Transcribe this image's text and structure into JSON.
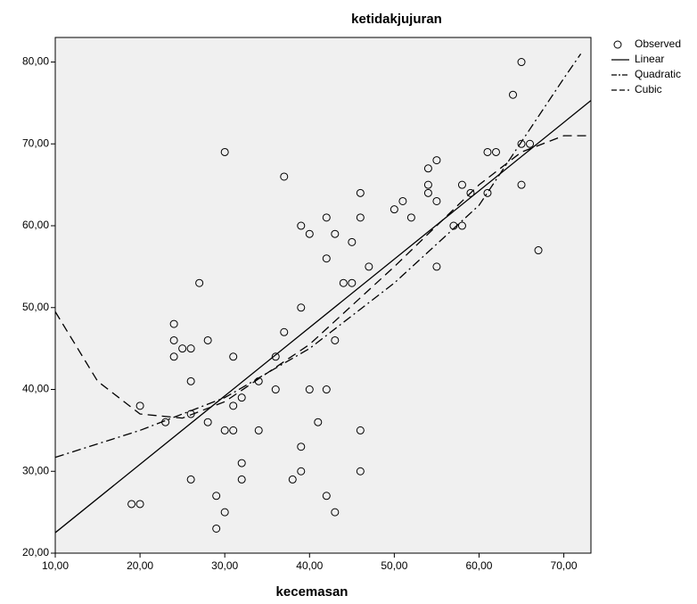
{
  "chart_data": {
    "type": "scatter",
    "title": "ketidakjujuran",
    "x_label": "kecemasan",
    "xlim": [
      10,
      73.2
    ],
    "ylim": [
      20,
      83
    ],
    "xticks": [
      {
        "value": 10,
        "label": "10,00"
      },
      {
        "value": 20,
        "label": "20,00"
      },
      {
        "value": 30,
        "label": "30,00"
      },
      {
        "value": 40,
        "label": "40,00"
      },
      {
        "value": 50,
        "label": "50,00"
      },
      {
        "value": 60,
        "label": "60,00"
      },
      {
        "value": 70,
        "label": "70,00"
      }
    ],
    "yticks": [
      {
        "value": 20,
        "label": "20,00"
      },
      {
        "value": 30,
        "label": "30,00"
      },
      {
        "value": 40,
        "label": "40,00"
      },
      {
        "value": 50,
        "label": "50,00"
      },
      {
        "value": 60,
        "label": "60,00"
      },
      {
        "value": 70,
        "label": "70,00"
      },
      {
        "value": 80,
        "label": "80,00"
      }
    ],
    "series": [
      {
        "name": "Observed",
        "color": "#000000",
        "marker": "circle",
        "x": [
          65,
          64,
          30,
          37,
          62,
          61,
          65,
          66,
          55,
          54,
          54,
          54,
          58,
          59,
          61,
          65,
          46,
          51,
          55,
          50,
          52,
          42,
          46,
          39,
          40,
          43,
          57,
          58,
          45,
          67,
          42,
          47,
          55,
          27,
          44,
          45,
          39,
          24,
          37,
          24,
          28,
          43,
          25,
          26,
          24,
          31,
          36,
          26,
          34,
          36,
          40,
          42,
          32,
          20,
          31,
          26,
          23,
          28,
          41,
          30,
          31,
          34,
          46,
          39,
          32,
          39,
          46,
          26,
          32,
          38,
          29,
          42,
          19,
          20,
          30,
          43,
          29
        ],
        "values": [
          80,
          76,
          69,
          66,
          69,
          69,
          70,
          70,
          68,
          67,
          65,
          64,
          65,
          64,
          64,
          65,
          64,
          63,
          63,
          62,
          61,
          61,
          61,
          60,
          59,
          59,
          60,
          60,
          58,
          57,
          56,
          55,
          55,
          53,
          53,
          53,
          50,
          48,
          47,
          46,
          46,
          46,
          45,
          45,
          44,
          44,
          44,
          41,
          41,
          40,
          40,
          40,
          39,
          38,
          38,
          37,
          36,
          36,
          36,
          35,
          35,
          35,
          35,
          33,
          31,
          30,
          30,
          29,
          29,
          29,
          27,
          27,
          26,
          26,
          25,
          25,
          23
        ]
      },
      {
        "name": "Linear",
        "color": "#000000",
        "dash": "solid",
        "x": [
          10,
          73.2
        ],
        "values": [
          22.5,
          75.3
        ]
      },
      {
        "name": "Quadratic",
        "color": "#000000",
        "dash": "dashdot",
        "x": [
          10,
          20,
          30,
          40,
          50,
          60,
          70,
          72
        ],
        "values": [
          31.7,
          35,
          39,
          45,
          53,
          62.5,
          78,
          81
        ]
      },
      {
        "name": "Cubic",
        "color": "#000000",
        "dash": "dashed",
        "x": [
          10,
          15,
          20,
          25,
          30,
          40,
          50,
          60,
          65,
          70,
          73
        ],
        "values": [
          49.5,
          41,
          37,
          36.5,
          38.5,
          45.5,
          55,
          65,
          69,
          71,
          71
        ]
      }
    ],
    "legend": "outside-top-right",
    "background": "#f0f0f0"
  }
}
